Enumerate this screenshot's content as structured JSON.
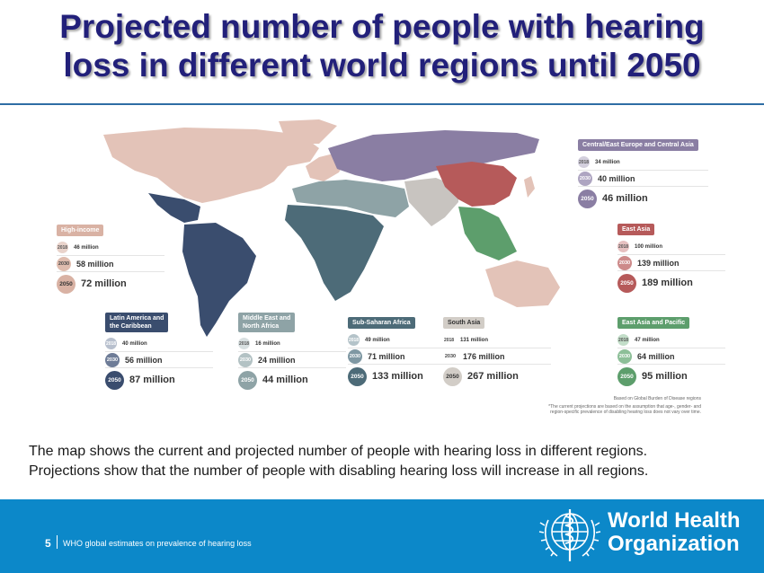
{
  "title": {
    "line1": "Projected number of people with hearing",
    "line2": "loss in different world regions until 2050"
  },
  "regions": [
    {
      "key": "high_income",
      "name": "High-income",
      "color": "#d9b2a4",
      "values": [
        {
          "year": "2018",
          "value": "46 million"
        },
        {
          "year": "2030",
          "value": "58 million"
        },
        {
          "year": "2050",
          "value": "72 million"
        }
      ]
    },
    {
      "key": "latin_america",
      "name": "Latin America and the Caribbean",
      "name_line1": "Latin America and",
      "name_line2": "the Caribbean",
      "color": "#3a4d6e",
      "values": [
        {
          "year": "2018",
          "value": "40 million"
        },
        {
          "year": "2030",
          "value": "56 million"
        },
        {
          "year": "2050",
          "value": "87 million"
        }
      ]
    },
    {
      "key": "middle_east",
      "name": "Middle East and North Africa",
      "name_line1": "Middle East and",
      "name_line2": "North Africa",
      "color": "#8ea3a6",
      "values": [
        {
          "year": "2018",
          "value": "16 million"
        },
        {
          "year": "2030",
          "value": "24 million"
        },
        {
          "year": "2050",
          "value": "44 million"
        }
      ]
    },
    {
      "key": "sub_saharan",
      "name": "Sub-Saharan Africa",
      "color": "#4d6b78",
      "values": [
        {
          "year": "2018",
          "value": "49 million"
        },
        {
          "year": "2030",
          "value": "71 million"
        },
        {
          "year": "2050",
          "value": "133 million"
        }
      ]
    },
    {
      "key": "south_asia",
      "name": "South Asia",
      "color": "#c8c4c0",
      "values": [
        {
          "year": "2018",
          "value": "131 million"
        },
        {
          "year": "2030",
          "value": "176 million"
        },
        {
          "year": "2050",
          "value": "267 million"
        }
      ]
    },
    {
      "key": "central_europe",
      "name": "Central/East Europe and Central Asia",
      "color": "#8a7ea3",
      "values": [
        {
          "year": "2018",
          "value": "34 million"
        },
        {
          "year": "2030",
          "value": "40 million"
        },
        {
          "year": "2050",
          "value": "46 million"
        }
      ]
    },
    {
      "key": "east_asia",
      "name": "East Asia",
      "color": "#b65a5a",
      "values": [
        {
          "year": "2018",
          "value": "100 million"
        },
        {
          "year": "2030",
          "value": "139 million"
        },
        {
          "year": "2050",
          "value": "189 million"
        }
      ]
    },
    {
      "key": "east_asia_pacific",
      "name": "East Asia and Pacific",
      "color": "#5d9e6c",
      "values": [
        {
          "year": "2018",
          "value": "47 million"
        },
        {
          "year": "2030",
          "value": "64 million"
        },
        {
          "year": "2050",
          "value": "95 million"
        }
      ]
    }
  ],
  "footnote": {
    "source": "Based on Global Burden of Disease regions",
    "note_line1": "*The current projections are based on the assumption that age-, gender- and",
    "note_line2": "region-specific prevalence of disabling hearing loss does not vary over time."
  },
  "caption": {
    "line1": "The map shows the current and projected number of people with hearing loss in different regions.",
    "line2": "Projections show that the number of people with disabling hearing loss will increase in all regions."
  },
  "footer": {
    "page_number": "5",
    "text": "WHO  global  estimates  on  prevalence  of  hearing  loss",
    "org_line1": "World Health",
    "org_line2": "Organization",
    "emblem_icon": "who-emblem-icon",
    "bar_color": "#0c88c9"
  }
}
